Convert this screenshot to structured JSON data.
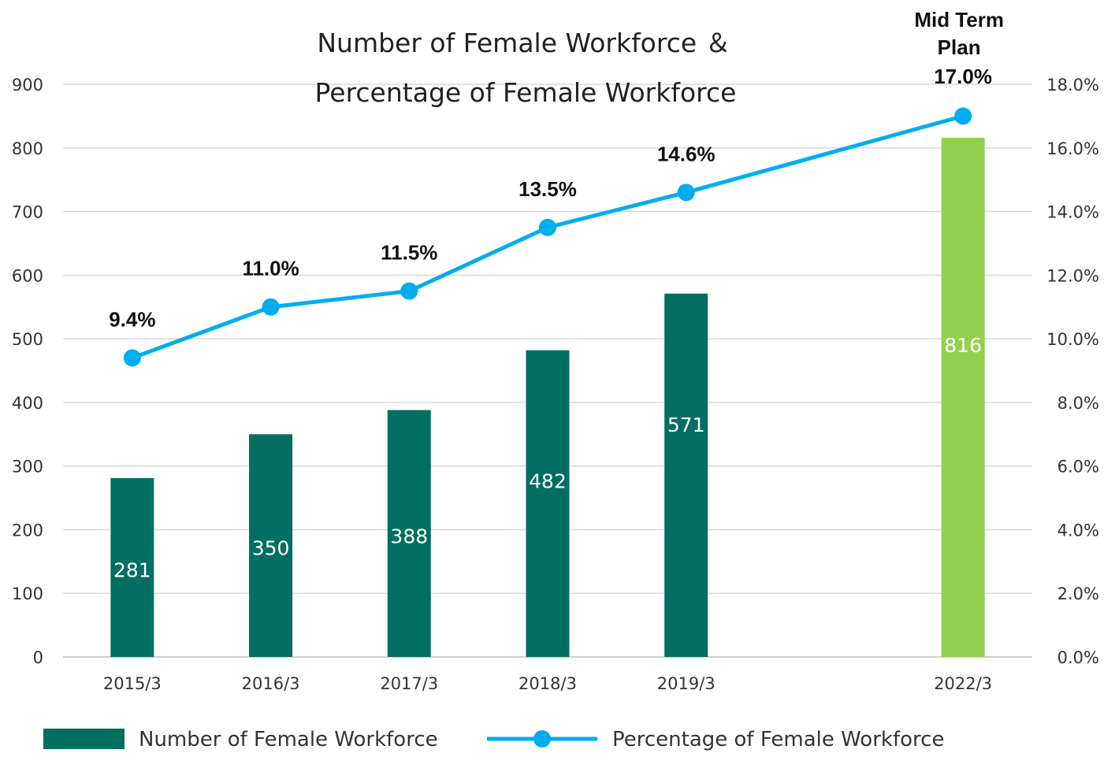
{
  "chart_data": {
    "type": "bar",
    "title_line1": "Number of Female Workforce ＆",
    "title_line2": "Percentage of Female Workforce",
    "categories": [
      "2015/3",
      "2016/3",
      "2017/3",
      "2018/3",
      "2019/3",
      "",
      "2022/3"
    ],
    "series": [
      {
        "name": "Number of Female Workforce",
        "type": "bar",
        "axis": "left",
        "values": [
          281,
          350,
          388,
          482,
          571,
          null,
          816
        ],
        "labels": [
          "281",
          "350",
          "388",
          "482",
          "571",
          "",
          "816"
        ],
        "colors": [
          "#006e60",
          "#006e60",
          "#006e60",
          "#006e60",
          "#006e60",
          "#006e60",
          "#92d050"
        ]
      },
      {
        "name": "Percentage of Female Workforce",
        "type": "line",
        "axis": "right",
        "values": [
          9.4,
          11.0,
          11.5,
          13.5,
          14.6,
          null,
          17.0
        ],
        "labels": [
          "9.4%",
          "11.0%",
          "11.5%",
          "13.5%",
          "14.6%",
          "",
          "17.0%"
        ],
        "color": "#00aeef"
      }
    ],
    "y_left": {
      "min": 0,
      "max": 900,
      "step": 100,
      "ticks": [
        "0",
        "100",
        "200",
        "300",
        "400",
        "500",
        "600",
        "700",
        "800",
        "900"
      ]
    },
    "y_right": {
      "min": 0,
      "max": 18,
      "step": 2,
      "ticks": [
        "0.0%",
        "2.0%",
        "4.0%",
        "6.0%",
        "8.0%",
        "10.0%",
        "12.0%",
        "14.0%",
        "16.0%",
        "18.0%"
      ]
    },
    "plan_annotation": [
      "Mid Term",
      "Plan"
    ],
    "grid": true,
    "legend_position": "bottom"
  }
}
